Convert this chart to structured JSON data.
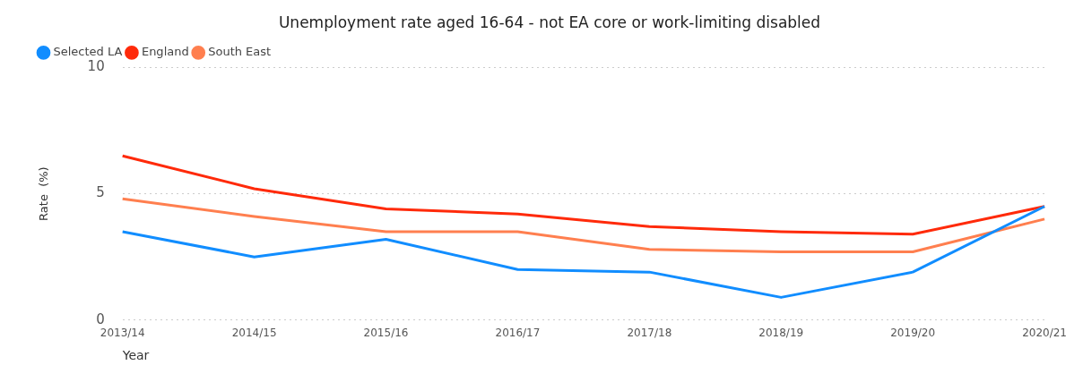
{
  "chart_data": {
    "type": "line",
    "title": "Unemployment rate aged 16-64 - not EA core or work-limiting disabled",
    "xlabel": "Year",
    "ylabel": "Rate  (%)",
    "categories": [
      "2013/14",
      "2014/15",
      "2015/16",
      "2016/17",
      "2017/18",
      "2018/19",
      "2019/20",
      "2020/21"
    ],
    "series": [
      {
        "name": "Selected LA",
        "color": "#118dff",
        "values": [
          3.5,
          2.5,
          3.2,
          2.0,
          1.9,
          0.9,
          1.9,
          4.5
        ]
      },
      {
        "name": "England",
        "color": "#ff2a0a",
        "values": [
          6.5,
          5.2,
          4.4,
          4.2,
          3.7,
          3.5,
          3.4,
          4.5
        ]
      },
      {
        "name": "South East",
        "color": "#ff7f4f",
        "values": [
          4.8,
          4.1,
          3.5,
          3.5,
          2.8,
          2.7,
          2.7,
          4.0
        ]
      }
    ],
    "ylim": [
      0,
      10
    ],
    "yticks": [
      0,
      5,
      10
    ],
    "grid": "y",
    "legend": "top left",
    "marker": "none",
    "line_style": "solid"
  }
}
